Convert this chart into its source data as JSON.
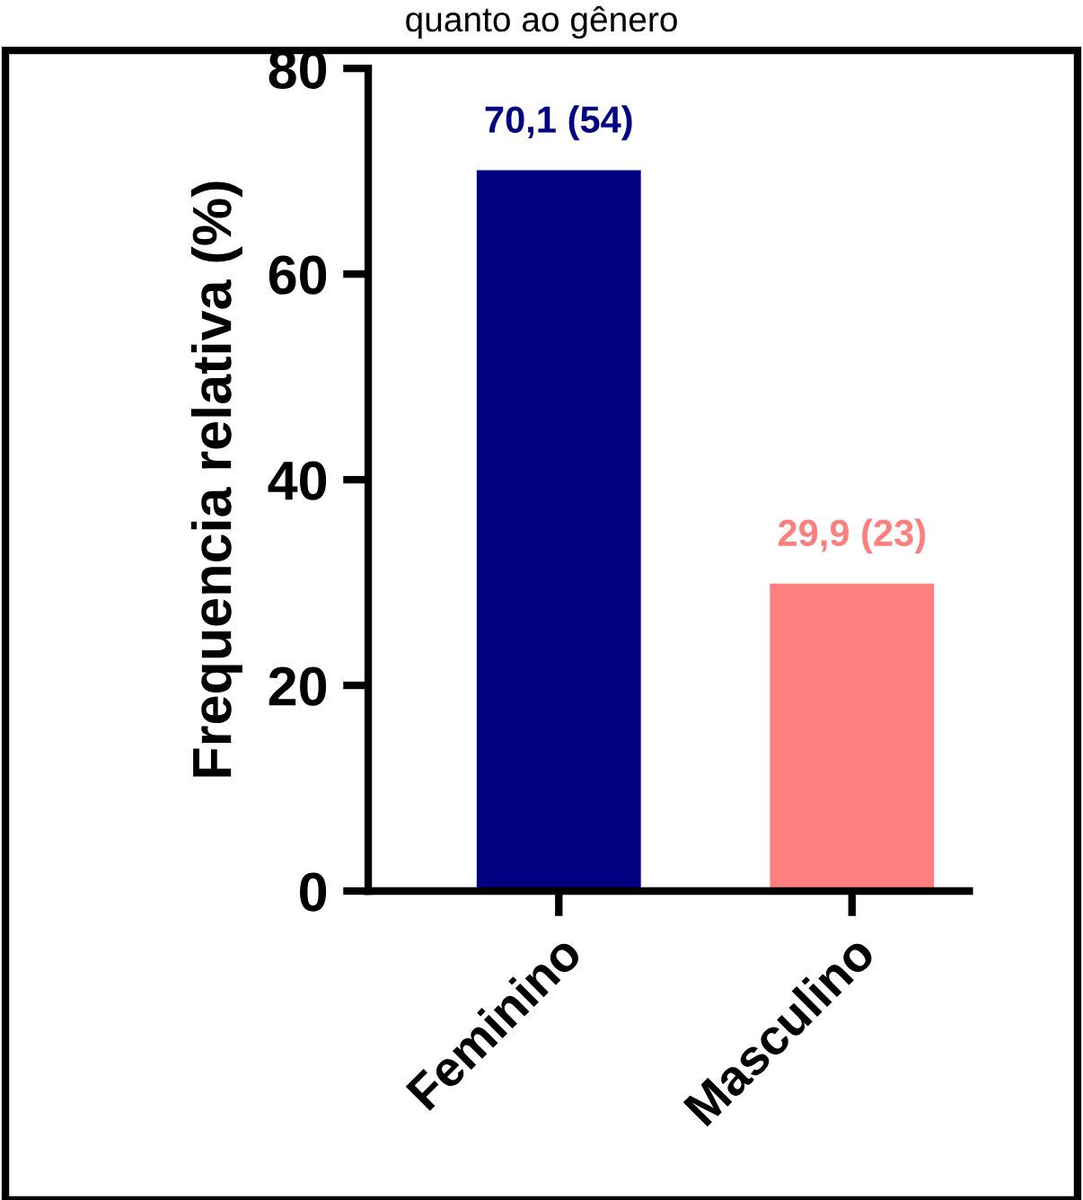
{
  "chart_data": {
    "type": "bar",
    "title": "quanto ao gênero",
    "ylabel": "Frequencia relativa (%)",
    "categories": [
      "Feminino",
      "Masculino"
    ],
    "values": [
      70.1,
      29.9
    ],
    "colors": [
      "#000080",
      "#ff7f7f"
    ],
    "value_labels": [
      "70,1 (54)",
      "29,9 (23)"
    ],
    "ylim": [
      0,
      80
    ],
    "yticks": [
      0,
      20,
      40,
      60,
      80
    ],
    "grid": false
  }
}
